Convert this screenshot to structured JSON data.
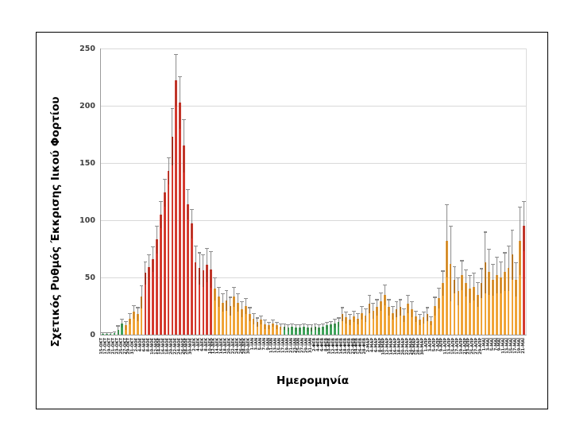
{
  "figure": {
    "background": "#ffffff",
    "frame_border_color": "#000000"
  },
  "chart_data": {
    "type": "bar",
    "title": "",
    "xlabel": "Ημερομηνία",
    "ylabel": "Σχετικός Ρυθμός Έκκρισης Ιικού Φορτίου",
    "ylim": [
      0,
      250
    ],
    "yticks": [
      0,
      50,
      100,
      150,
      200,
      250
    ],
    "grid": "horizontal",
    "legend": "none",
    "error_bars": "plus-direction, gray whiskers with caps",
    "colors": {
      "green": "#3FA45B",
      "orange": "#F0A437",
      "red": "#D43A2F",
      "error_bar": "#8C8C8C",
      "gridline": "#D9D9D9",
      "axis_line": "#9B9B9B",
      "tick_text": "#3F3F3F",
      "label_text": "#262626"
    },
    "bars": {
      "labels": [
        "15-ΟΚΤ",
        "17-ΟΚΤ",
        "19-ΟΚΤ",
        "21-ΟΚΤ",
        "23-ΟΚΤ",
        "25-ΟΚΤ",
        "27-ΟΚΤ",
        "29-ΟΚΤ",
        "31-ΟΚΤ",
        "2-ΝΟΕ",
        "4-ΝΟΕ",
        "6-ΝΟΕ",
        "8-ΝΟΕ",
        "10-ΝΟΕ",
        "12-ΝΟΕ",
        "14-ΝΟΕ",
        "16-ΝΟΕ",
        "18-ΝΟΕ",
        "20-ΝΟΕ",
        "22-ΝΟΕ",
        "24-ΝΟΕ",
        "26-ΝΟΕ",
        "28-ΝΟΕ",
        "30-ΝΟΕ",
        "2-ΔΕΚ",
        "4-ΔΕΚ",
        "6-ΔΕΚ",
        "8-ΔΕΚ",
        "10-ΔΕΚ",
        "12-ΔΕΚ",
        "14-ΔΕΚ",
        "16-ΔΕΚ",
        "18-ΔΕΚ",
        "20-ΔΕΚ",
        "22-ΔΕΚ",
        "24-ΔΕΚ",
        "26-ΔΕΚ",
        "28-ΔΕΚ",
        "30-ΔΕΚ",
        "1-ΙΑΝ",
        "3-ΙΑΝ",
        "5-ΙΑΝ",
        "7-ΙΑΝ",
        "9-ΙΑΝ",
        "11-ΙΑΝ",
        "13-ΙΑΝ",
        "15-ΙΑΝ",
        "17-ΙΑΝ",
        "19-ΙΑΝ",
        "21-ΙΑΝ",
        "23-ΙΑΝ",
        "25-ΙΑΝ",
        "27-ΙΑΝ",
        "29-ΙΑΝ",
        "31-ΙΑΝ",
        "2-ΦΕΒ",
        "4-ΦΕΒ",
        "6-ΦΕΒ",
        "8-ΦΕΒ",
        "10-ΦΕΒ",
        "12-ΦΕΒ",
        "14-ΦΕΒ",
        "16-ΦΕΒ",
        "18-ΦΕΒ",
        "20-ΦΕΒ",
        "22-ΦΕΒ",
        "24-ΦΕΒ",
        "26-ΦΕΒ",
        "28-ΦΕΒ",
        "2-ΜΑΡ",
        "4-ΜΑΡ",
        "6-ΜΑΡ",
        "8-ΜΑΡ",
        "10-ΜΑΡ",
        "12-ΜΑΡ",
        "14-ΜΑΡ",
        "16-ΜΑΡ",
        "18-ΜΑΡ",
        "20-ΜΑΡ",
        "22-ΜΑΡ",
        "24-ΜΑΡ",
        "26-ΜΑΡ",
        "28-ΜΑΡ",
        "30-ΜΑΡ",
        "1-ΑΠΡ",
        "3-ΑΠΡ",
        "5-ΑΠΡ",
        "7-ΑΠΡ",
        "9-ΑΠΡ",
        "11-ΑΠΡ",
        "13-ΑΠΡ",
        "15-ΑΠΡ",
        "17-ΑΠΡ",
        "19-ΑΠΡ",
        "21-ΑΠΡ",
        "23-ΑΠΡ",
        "25-ΑΠΡ",
        "27-ΑΠΡ",
        "29-ΑΠΡ",
        "1-ΜΑΪ",
        "3-ΜΑΪ",
        "5-ΜΑΪ",
        "7-ΜΑΪ",
        "9-ΜΑΪ",
        "11-ΜΑΪ",
        "13-ΜΑΪ",
        "15-ΜΑΪ",
        "17-ΜΑΪ",
        "19-ΜΑΪ",
        "21-ΜΑΪ"
      ],
      "values": [
        1,
        1,
        1,
        1.5,
        4,
        10,
        8,
        14,
        20,
        18,
        33,
        54,
        59,
        66,
        83,
        105,
        124,
        143,
        173,
        222,
        203,
        165,
        114,
        97,
        63,
        58,
        56,
        61,
        57,
        40,
        33,
        28,
        30,
        25,
        33,
        28,
        22,
        25,
        18,
        14,
        11,
        13,
        9,
        8,
        10,
        8,
        7,
        7,
        6,
        7,
        6,
        6,
        7,
        6,
        6,
        7,
        6,
        7,
        8,
        9,
        10,
        11,
        18,
        15,
        13,
        16,
        14,
        19,
        17,
        27,
        21,
        24,
        29,
        35,
        24,
        19,
        22,
        24,
        17,
        27,
        22,
        16,
        13,
        15,
        18,
        12,
        25,
        32,
        45,
        82,
        62,
        48,
        38,
        52,
        45,
        40,
        42,
        35,
        45,
        63,
        55,
        48,
        52,
        50,
        55,
        58,
        70,
        48,
        82,
        95
      ],
      "error_top": [
        2,
        2,
        2,
        3,
        8,
        14,
        12,
        19,
        26,
        24,
        43,
        64,
        70,
        77,
        95,
        117,
        136,
        155,
        198,
        245,
        226,
        188,
        127,
        110,
        78,
        72,
        70,
        76,
        73,
        50,
        42,
        36,
        39,
        33,
        42,
        36,
        29,
        32,
        24,
        19,
        15,
        17,
        13,
        11,
        13,
        11,
        10,
        10,
        9,
        10,
        9,
        9,
        10,
        9,
        9,
        10,
        9,
        10,
        11,
        12,
        14,
        15,
        24,
        20,
        18,
        21,
        19,
        25,
        23,
        35,
        28,
        31,
        37,
        44,
        31,
        25,
        29,
        31,
        23,
        35,
        29,
        21,
        18,
        20,
        24,
        16,
        33,
        41,
        56,
        114,
        95,
        60,
        50,
        65,
        57,
        52,
        54,
        46,
        58,
        90,
        75,
        62,
        68,
        64,
        72,
        78,
        92,
        63,
        112,
        117
      ],
      "colors": [
        "g",
        "g",
        "g",
        "g",
        "g",
        "g",
        "o",
        "o",
        "o",
        "o",
        "o",
        "r",
        "r",
        "r",
        "r",
        "r",
        "r",
        "r",
        "r",
        "r",
        "r",
        "r",
        "r",
        "r",
        "r",
        "r",
        "r",
        "r",
        "r",
        "o",
        "o",
        "o",
        "o",
        "o",
        "o",
        "o",
        "o",
        "o",
        "o",
        "o",
        "o",
        "o",
        "o",
        "o",
        "o",
        "o",
        "o",
        "g",
        "g",
        "g",
        "g",
        "g",
        "g",
        "g",
        "g",
        "g",
        "g",
        "g",
        "g",
        "g",
        "g",
        "g",
        "o",
        "o",
        "o",
        "o",
        "o",
        "o",
        "o",
        "o",
        "o",
        "o",
        "o",
        "o",
        "o",
        "o",
        "o",
        "o",
        "o",
        "o",
        "o",
        "o",
        "o",
        "o",
        "o",
        "o",
        "o",
        "o",
        "o",
        "o",
        "o",
        "o",
        "o",
        "o",
        "o",
        "o",
        "o",
        "o",
        "o",
        "o",
        "o",
        "o",
        "o",
        "o",
        "o",
        "o",
        "o",
        "o",
        "o",
        "r"
      ]
    }
  }
}
